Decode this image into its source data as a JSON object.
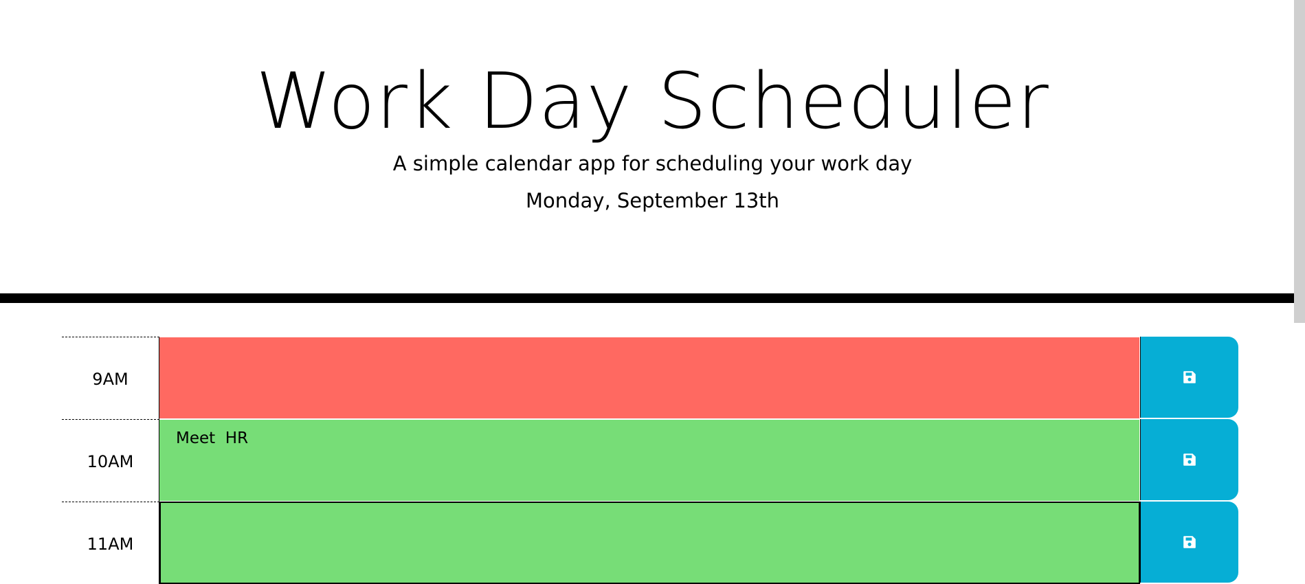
{
  "header": {
    "title": "Work Day Scheduler",
    "subtitle": "A simple calendar app for scheduling your work day",
    "current_day": "Monday, September 13th"
  },
  "colors": {
    "past": "#ff6961",
    "future": "#77dd77",
    "save_button": "#06aed5"
  },
  "time_blocks": [
    {
      "hour": "9AM",
      "text": "",
      "state": "past",
      "save_icon": "save-icon"
    },
    {
      "hour": "10AM",
      "text": "Meet  HR",
      "state": "future",
      "save_icon": "save-icon"
    },
    {
      "hour": "11AM",
      "text": "",
      "state": "future",
      "save_icon": "save-icon"
    }
  ]
}
